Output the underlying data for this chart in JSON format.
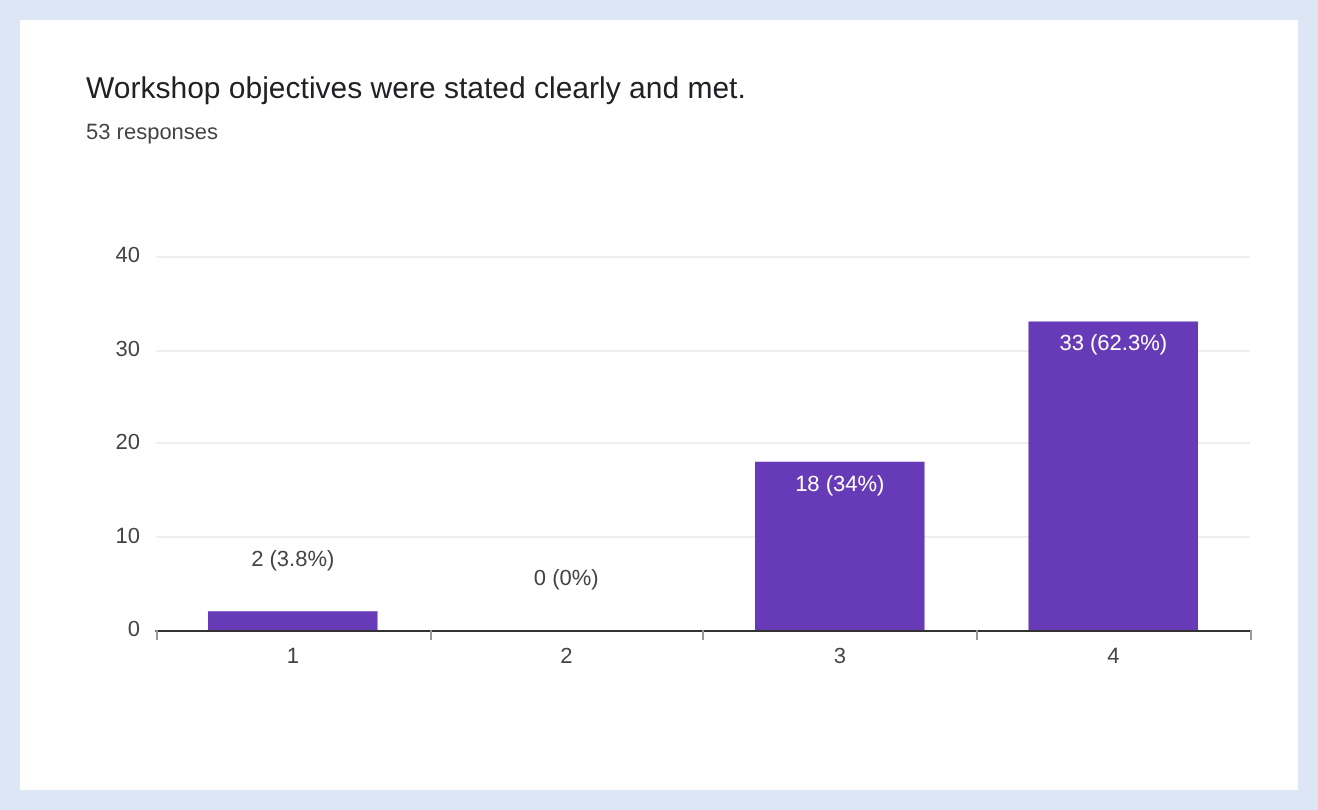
{
  "chart_data": {
    "type": "bar",
    "title": "Workshop objectives were stated clearly and met.",
    "subtitle": "53 responses",
    "categories": [
      "1",
      "2",
      "3",
      "4"
    ],
    "values": [
      2,
      0,
      18,
      33
    ],
    "value_labels": [
      "2 (3.8%)",
      "0 (0%)",
      "18 (34%)",
      "33 (62.3%)"
    ],
    "color": "#673ab7",
    "ylim": [
      0,
      40
    ],
    "yticks": [
      0,
      10,
      20,
      30,
      40
    ],
    "grid": "y"
  }
}
